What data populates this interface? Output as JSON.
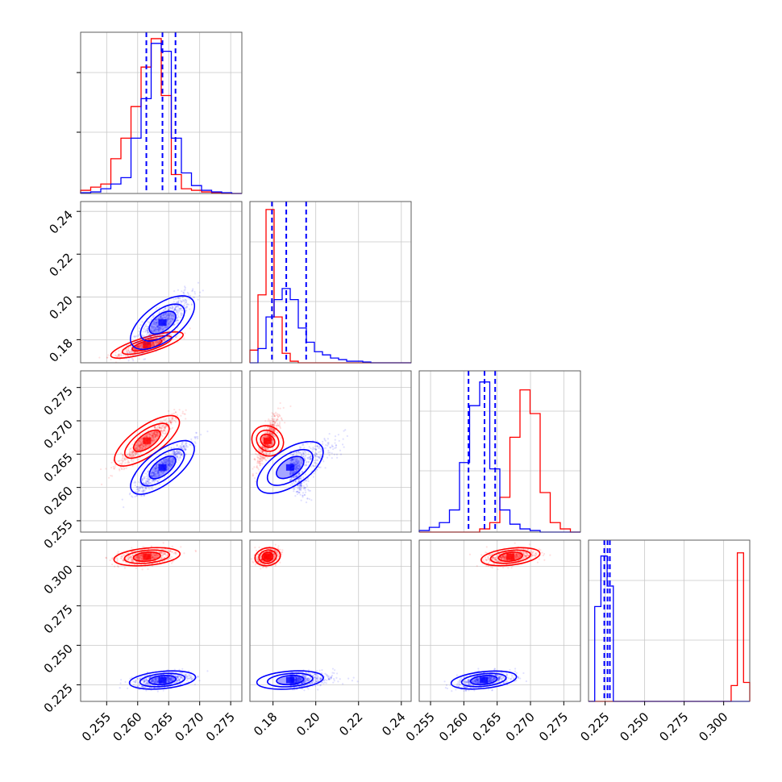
{
  "chart_data": {
    "type": "corner",
    "grid": true,
    "colors": {
      "red": "#ff0000",
      "blue": "#0000ff",
      "quantile_line": "#0000ff"
    },
    "parameters": [
      {
        "ticks": [
          0.255,
          0.26,
          0.265,
          0.27,
          0.275
        ],
        "tick_labels": [
          "0.255",
          "0.260",
          "0.265",
          "0.270",
          "0.275"
        ],
        "range": [
          0.2508,
          0.2768
        ]
      },
      {
        "ticks": [
          0.18,
          0.2,
          0.22,
          0.24
        ],
        "tick_labels": [
          "0.18",
          "0.20",
          "0.22",
          "0.24"
        ],
        "range": [
          0.1692,
          0.2446
        ]
      },
      {
        "ticks": [
          0.255,
          0.26,
          0.265,
          0.27,
          0.275
        ],
        "tick_labels": [
          "0.255",
          "0.260",
          "0.265",
          "0.270",
          "0.275"
        ],
        "range": [
          0.2533,
          0.2775
        ]
      },
      {
        "ticks": [
          0.225,
          0.25,
          0.275,
          0.3
        ],
        "tick_labels": [
          "0.225",
          "0.250",
          "0.275",
          "0.300"
        ],
        "range": [
          0.2145,
          0.3165
        ]
      }
    ],
    "series": [
      {
        "color": "red",
        "means": [
          0.2615,
          0.1775,
          0.267,
          0.306
        ],
        "sigmas": [
          0.0022,
          0.0025,
          0.0018,
          0.0025
        ],
        "histograms": [
          [
            0.02,
            0.04,
            0.06,
            0.22,
            0.35,
            0.55,
            0.8,
            0.98,
            0.62,
            0.12,
            0.03,
            0.02,
            0.01,
            0.005,
            0,
            0
          ],
          [
            0.08,
            0.43,
            0.97,
            0.29,
            0.06,
            0.01,
            0.0,
            0.0,
            0.0,
            0.0,
            0.0,
            0.0,
            0.0,
            0.0,
            0.0,
            0.0,
            0.0,
            0.0,
            0.0,
            0.0
          ],
          [
            0.0,
            0.0,
            0.0,
            0.0,
            0.0,
            0.0,
            0.02,
            0.06,
            0.22,
            0.6,
            0.9,
            0.75,
            0.25,
            0.06,
            0.02,
            0.0
          ],
          [
            0.0,
            0.0,
            0.0,
            0.0,
            0.0,
            0.0,
            0.0,
            0.0,
            0.0,
            0.0,
            0.0,
            0.0,
            0.0,
            0.0,
            0.0,
            0.0,
            0.0,
            0.0,
            0.0,
            0.0,
            0.0,
            0.0,
            0.0,
            0.1,
            0.94,
            0.12
          ]
        ]
      },
      {
        "color": "blue",
        "means": [
          0.264,
          0.188,
          0.263,
          0.228
        ],
        "sigmas": [
          0.0022,
          0.0065,
          0.002,
          0.0025
        ],
        "histograms": [
          [
            0.005,
            0.01,
            0.03,
            0.06,
            0.1,
            0.35,
            0.6,
            0.95,
            0.9,
            0.35,
            0.13,
            0.05,
            0.02,
            0.01,
            0.005,
            0
          ],
          [
            0.0,
            0.09,
            0.29,
            0.4,
            0.47,
            0.4,
            0.22,
            0.13,
            0.07,
            0.05,
            0.03,
            0.02,
            0.01,
            0.01,
            0.005,
            0.0,
            0.0,
            0.0,
            0.0,
            0.0
          ],
          [
            0.01,
            0.03,
            0.06,
            0.14,
            0.44,
            0.8,
            0.95,
            0.4,
            0.14,
            0.05,
            0.02,
            0.01,
            0.0,
            0.0,
            0.0,
            0.0
          ],
          [
            0.0,
            0.6,
            0.92,
            0.73,
            0.0,
            0.0,
            0.0,
            0.0,
            0.0,
            0.0,
            0.0,
            0.0,
            0.0,
            0.0,
            0.0,
            0.0,
            0.0,
            0.0,
            0.0,
            0.0,
            0.0,
            0.0,
            0.0,
            0.0,
            0.0,
            0.0
          ]
        ]
      }
    ],
    "quantiles": [
      [
        0.2614,
        0.264,
        0.2661
      ],
      [
        0.1795,
        0.1862,
        0.1955
      ],
      [
        0.2607,
        0.2631,
        0.2647
      ],
      [
        0.2245,
        0.2265,
        0.228
      ]
    ]
  }
}
